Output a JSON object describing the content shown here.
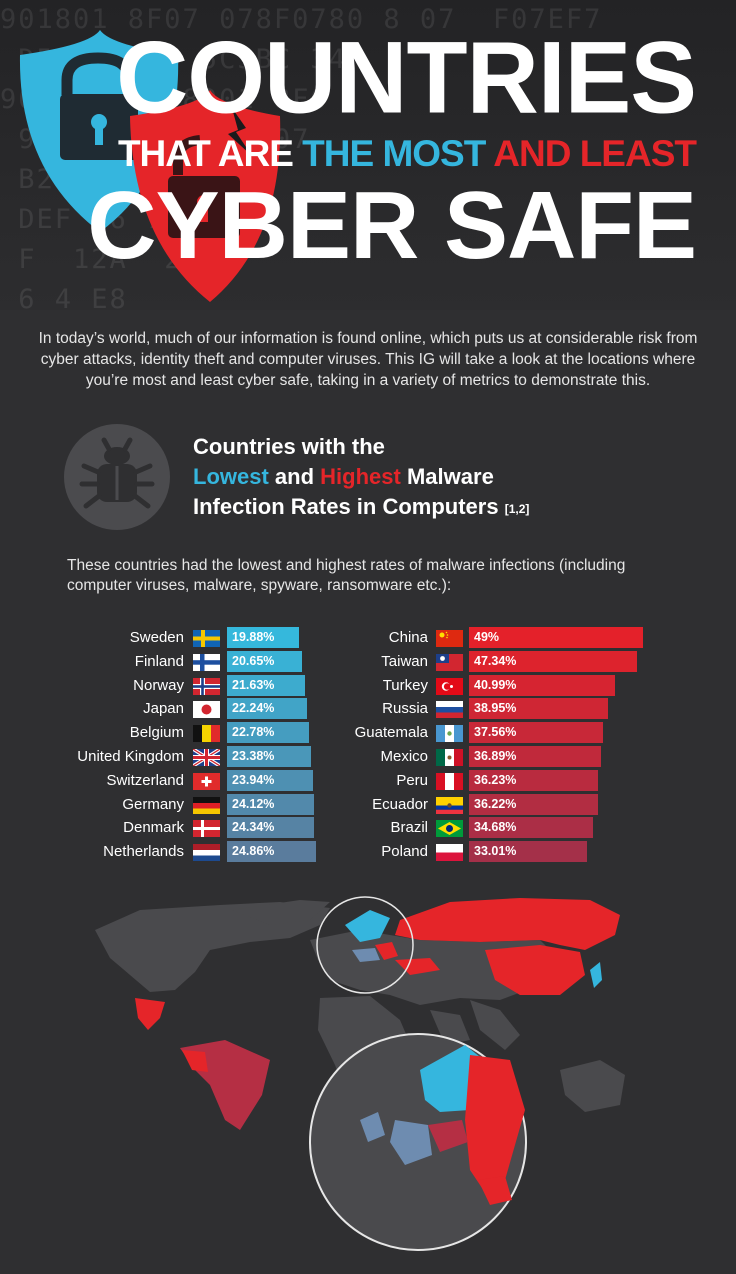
{
  "header": {
    "hex_background": "901801 8F07 078F0780 8 07  F07EF7\n D5 D5 6D4 5C3BC 34\n90   0 F0 8901 8F0\n 9070  0 8 0 EF07\n B234B B   \n DEF F6 7 E\n F  12A  22 6\n 6 4 E8  \n   A23  91 89\n 5EEF6  2 E   EF6 7F  8 2\n B  B 5 C",
    "title_line1": "COUNTRIES",
    "title_line2_part1": "THAT ARE",
    "title_line2_part2": "THE MOST",
    "title_line2_part3": "AND LEAST",
    "title_line3": "CYBER SAFE"
  },
  "intro": "In today’s world, much of our information is found online, which puts us at considerable risk from cyber attacks, identity theft and computer viruses. This IG will take a look at the locations where you’re most and least cyber safe, taking in a variety of metrics to demonstrate this.",
  "section": {
    "title_line1": "Countries with the",
    "title_lowest": "Lowest",
    "title_and": "and",
    "title_highest": "Highest",
    "title_malware": "Malware",
    "title_line3": "Infection Rates in Computers",
    "title_ref": "[1,2]",
    "subtitle": "These countries had the lowest and highest rates of malware infections (including computer viruses, malware, spyware, ransomware etc.):"
  },
  "colors": {
    "blue_start": "#35b8dc",
    "blue_end": "#5a7c9d",
    "red_start": "#e4212a",
    "red_end": "#a43049",
    "map_land": "#4a4a4d",
    "map_blue": "#35b6de",
    "map_red": "#e52529",
    "map_dark_red": "#b52f44"
  },
  "chart_data": [
    {
      "type": "bar",
      "orientation": "horizontal",
      "series_group": "lowest",
      "categories": [
        "Sweden",
        "Finland",
        "Norway",
        "Japan",
        "Belgium",
        "United Kingdom",
        "Switzerland",
        "Germany",
        "Denmark",
        "Netherlands"
      ],
      "values": [
        19.88,
        20.65,
        21.63,
        22.24,
        22.78,
        23.38,
        23.94,
        24.12,
        24.34,
        24.86
      ],
      "labels": [
        "19.88%",
        "20.65%",
        "21.63%",
        "22.24%",
        "22.78%",
        "23.38%",
        "23.94%",
        "24.12%",
        "24.34%",
        "24.86%"
      ],
      "flags": [
        "sweden",
        "finland",
        "norway",
        "japan",
        "belgium",
        "uk",
        "switzerland",
        "germany",
        "denmark",
        "netherlands"
      ]
    },
    {
      "type": "bar",
      "orientation": "horizontal",
      "series_group": "highest",
      "categories": [
        "China",
        "Taiwan",
        "Turkey",
        "Russia",
        "Guatemala",
        "Mexico",
        "Peru",
        "Ecuador",
        "Brazil",
        "Poland"
      ],
      "values": [
        49,
        47.34,
        40.99,
        38.95,
        37.56,
        36.89,
        36.23,
        36.22,
        34.68,
        33.01
      ],
      "labels": [
        "49%",
        "47.34%",
        "40.99%",
        "38.95%",
        "37.56%",
        "36.89%",
        "36.23%",
        "36.22%",
        "34.68%",
        "33.01%"
      ],
      "flags": [
        "china",
        "taiwan",
        "turkey",
        "russia",
        "guatemala",
        "mexico",
        "peru",
        "ecuador",
        "brazil",
        "poland"
      ]
    }
  ]
}
